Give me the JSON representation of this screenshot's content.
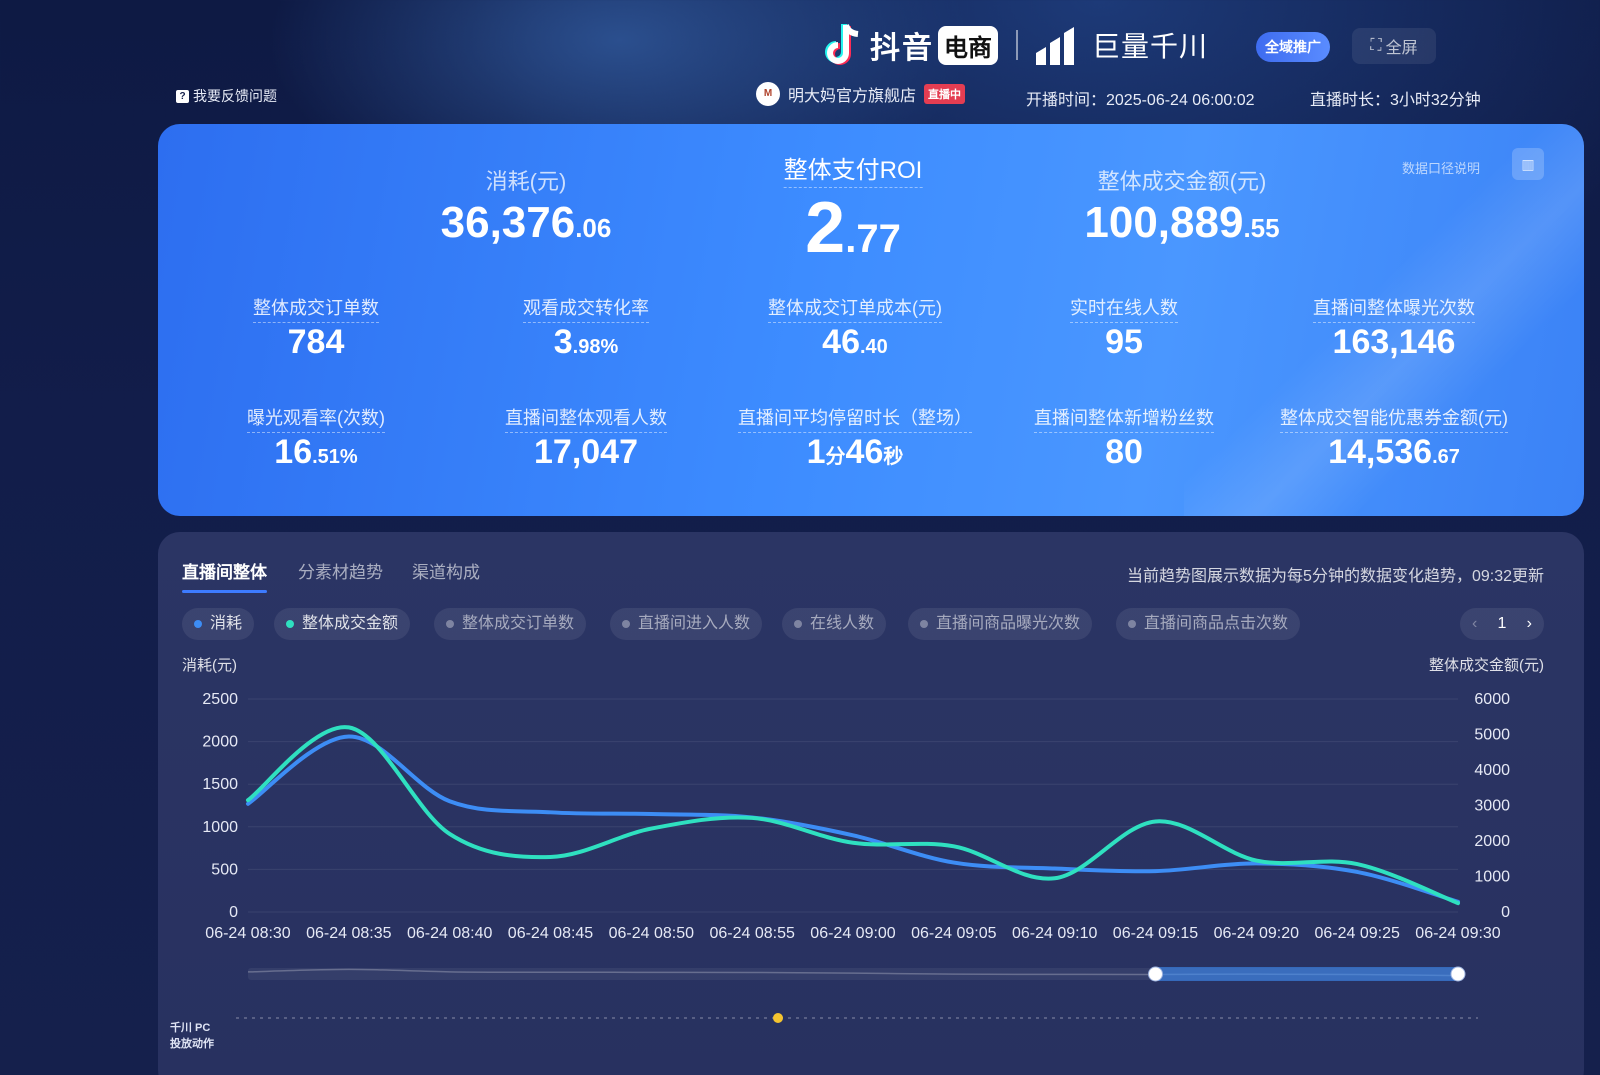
{
  "header": {
    "brand_name": "抖音",
    "brand_pill": "电商",
    "qianchuan_name": "巨量千川",
    "promo_badge": "全域推广",
    "fullscreen_label": "全屏",
    "feedback_label": "我要反馈问题",
    "shop_name": "明大妈官方旗舰店",
    "live_status": "直播中",
    "start_time": "开播时间：2025-06-24 06:00:02",
    "duration": "直播时长：3小时32分钟"
  },
  "metrics_card": {
    "doc_link": "数据口径说明",
    "spend": {
      "label": "消耗(元)",
      "int": "36,376",
      "dec": ".06"
    },
    "roi": {
      "label": "整体支付ROI",
      "int": "2",
      "dec": ".77"
    },
    "gmv": {
      "label": "整体成交金额(元)",
      "int": "100,889",
      "dec": ".55"
    },
    "row1": [
      {
        "label": "整体成交订单数",
        "int": "784",
        "dec": ""
      },
      {
        "label": "观看成交转化率",
        "int": "3",
        "dec": ".98%"
      },
      {
        "label": "整体成交订单成本(元)",
        "int": "46",
        "dec": ".40"
      },
      {
        "label": "实时在线人数",
        "int": "95",
        "dec": ""
      },
      {
        "label": "直播间整体曝光次数",
        "int": "163,146",
        "dec": ""
      }
    ],
    "row2": [
      {
        "label": "曝光观看率(次数)",
        "int": "16",
        "dec": ".51%"
      },
      {
        "label": "直播间整体观看人数",
        "int": "17,047",
        "dec": ""
      },
      {
        "label": "直播间平均停留时长（整场）",
        "int": "1",
        "dec": "分",
        "int2": "46",
        "dec2": "秒"
      },
      {
        "label": "直播间整体新增粉丝数",
        "int": "80",
        "dec": ""
      },
      {
        "label": "整体成交智能优惠券金额(元)",
        "int": "14,536",
        "dec": ".67"
      }
    ]
  },
  "chart_panel": {
    "tabs": [
      "直播间整体",
      "分素材趋势",
      "渠道构成"
    ],
    "trend_note": "当前趋势图展示数据为每5分钟的数据变化趋势，09:32更新",
    "chips": [
      "消耗",
      "整体成交金额",
      "整体成交订单数",
      "直播间进入人数",
      "在线人数",
      "直播间商品曝光次数",
      "直播间商品点击次数"
    ],
    "page": "1",
    "action_label_line1": "千川 PC",
    "action_label_line2": "投放动作"
  },
  "colors": {
    "spend": "#3d8df5",
    "gmv": "#2fe0c0",
    "action_dot": "#f4c430"
  },
  "chart_data": {
    "type": "line",
    "x": [
      "06-24 08:30",
      "06-24 08:35",
      "06-24 08:40",
      "06-24 08:45",
      "06-24 08:50",
      "06-24 08:55",
      "06-24 09:00",
      "06-24 09:05",
      "06-24 09:10",
      "06-24 09:15",
      "06-24 09:20",
      "06-24 09:25",
      "06-24 09:30"
    ],
    "ylabel": "消耗(元)",
    "y2label": "整体成交金额(元)",
    "ylim": [
      0,
      2500
    ],
    "y2lim": [
      0,
      6000
    ],
    "yticks": [
      0,
      500,
      1000,
      1500,
      2000,
      2500
    ],
    "y2ticks": [
      0,
      1000,
      2000,
      3000,
      4000,
      5000,
      6000
    ],
    "grid": true,
    "series": [
      {
        "name": "消耗",
        "axis": "left",
        "values": [
          1270,
          2060,
          1300,
          1170,
          1150,
          1110,
          900,
          580,
          510,
          480,
          570,
          470,
          120
        ]
      },
      {
        "name": "整体成交金额",
        "axis": "right",
        "values": [
          3150,
          5200,
          2200,
          1550,
          2350,
          2650,
          1950,
          1850,
          950,
          2550,
          1450,
          1350,
          250
        ]
      }
    ],
    "brush_range": [
      "06-24 09:15",
      "06-24 09:30"
    ]
  }
}
